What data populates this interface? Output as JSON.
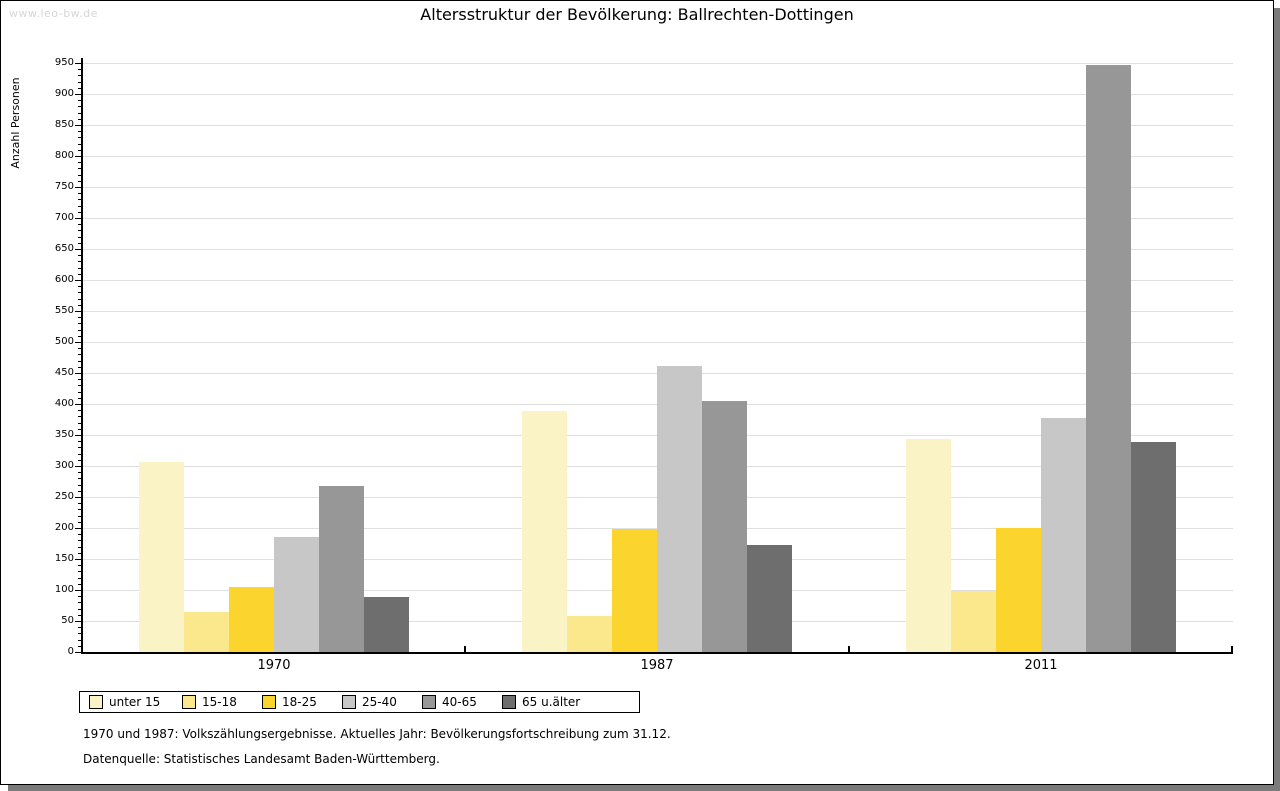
{
  "watermark": "www.leo-bw.de",
  "chart_data": {
    "type": "bar",
    "title": "Altersstruktur der Bevölkerung: Ballrechten-Dottingen",
    "ylabel": "Anzahl Personen",
    "categories": [
      "1970",
      "1987",
      "2011"
    ],
    "series": [
      {
        "name": "unter 15",
        "color": "#faf3c6",
        "values": [
          307,
          389,
          344
        ]
      },
      {
        "name": "15-18",
        "color": "#fbe88c",
        "values": [
          65,
          58,
          98
        ]
      },
      {
        "name": "18-25",
        "color": "#fcd42e",
        "values": [
          105,
          198,
          200
        ]
      },
      {
        "name": "25-40",
        "color": "#c7c7c7",
        "values": [
          185,
          462,
          377
        ]
      },
      {
        "name": "40-65",
        "color": "#979797",
        "values": [
          268,
          405,
          947
        ]
      },
      {
        "name": "65 u.älter",
        "color": "#6e6e6e",
        "values": [
          88,
          173,
          338
        ]
      }
    ],
    "ylim": [
      0,
      950
    ],
    "ytick_step": 50,
    "yminor_step": 10,
    "grid": true,
    "legend_position": "bottom",
    "gridline_color": "#e0e0e0"
  },
  "footnotes": [
    "1970 und 1987: Volkszählungsergebnisse. Aktuelles Jahr: Bevölkerungsfortschreibung zum 31.12.",
    "Datenquelle: Statistisches Landesamt Baden-Württemberg."
  ]
}
